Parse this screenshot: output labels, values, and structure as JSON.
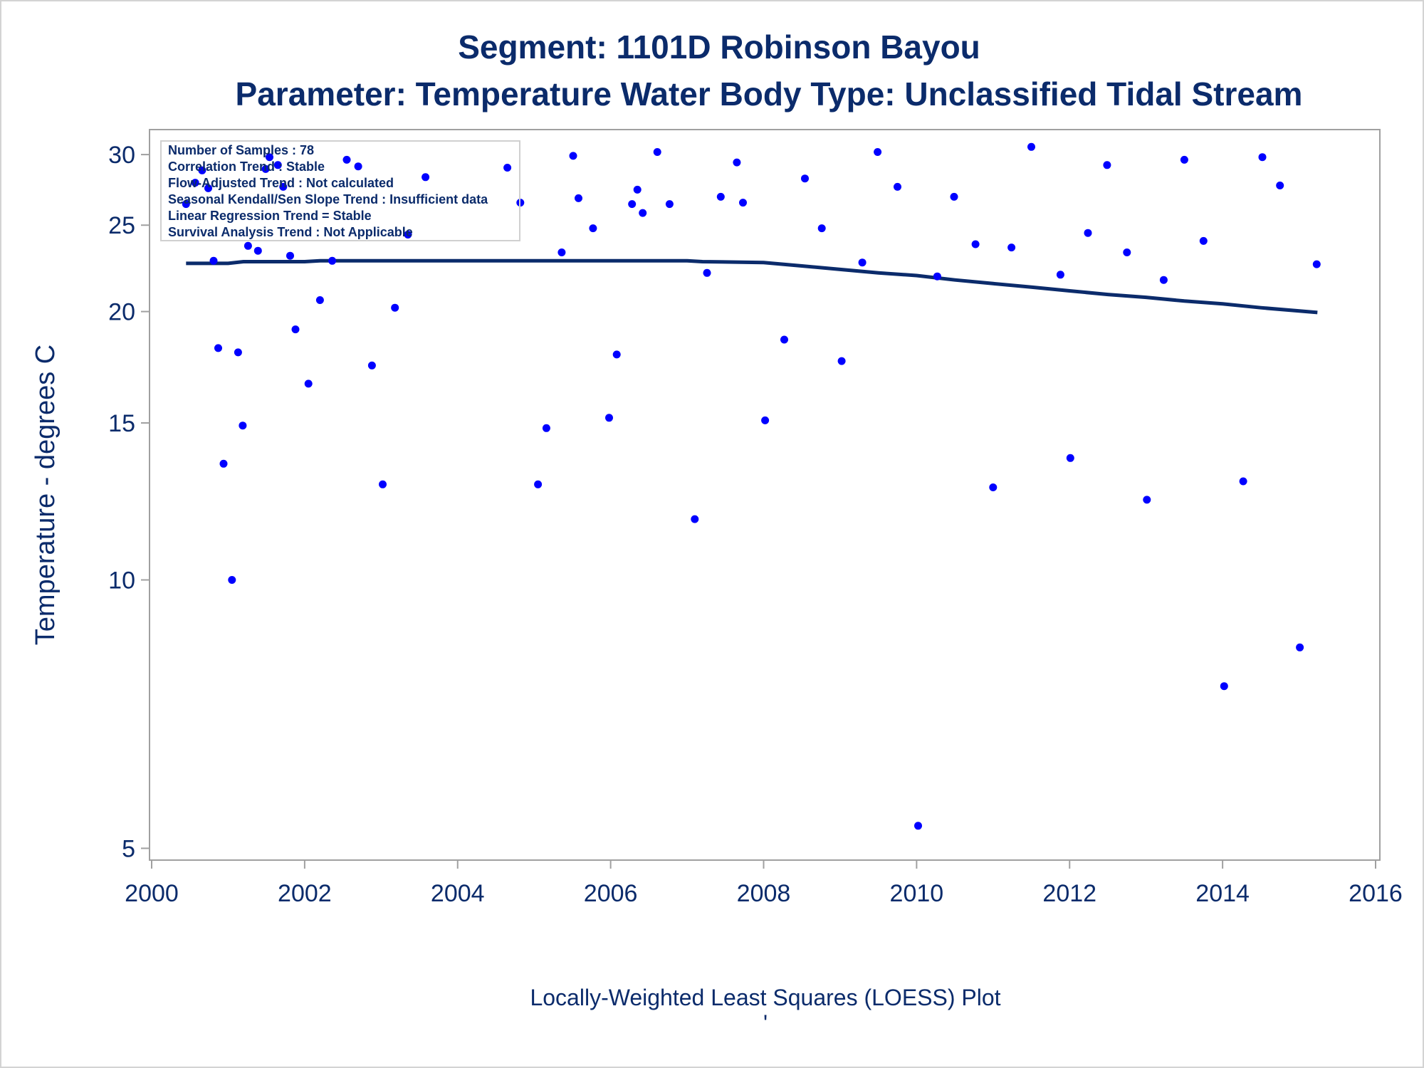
{
  "chart_data": {
    "type": "scatter",
    "title": "Segment: 1101D  Robinson Bayou",
    "subtitle": "Parameter: Temperature   Water Body Type: Unclassified Tidal Stream",
    "xlabel": "",
    "ylabel": "Temperature - degrees C",
    "footnote": "Locally-Weighted Least Squares (LOESS) Plot",
    "footnote2": "'",
    "y_scale": "log",
    "xlim": [
      2000,
      2016
    ],
    "ylim": [
      4.85,
      32
    ],
    "x_ticks": [
      2000,
      2002,
      2004,
      2006,
      2008,
      2010,
      2012,
      2014,
      2016
    ],
    "y_ticks": [
      5,
      10,
      15,
      20,
      25,
      30
    ],
    "grid": false,
    "colors": {
      "points": "#0000ff",
      "loess": "#0b2b6b",
      "text": "#0b2b6b",
      "axis": "#a0a0a0"
    },
    "stats_box": [
      "Number of Samples : 78",
      "Correlation Trend : Stable",
      "Flow-Adjusted Trend : Not calculated",
      "Seasonal Kendall/Sen Slope Trend : Insufficient data",
      "Linear Regression Trend = Stable",
      "Survival Analysis Trend : Not Applicable"
    ],
    "series": [
      {
        "type": "scatter",
        "points": [
          [
            2000.45,
            26.4
          ],
          [
            2000.57,
            27.9
          ],
          [
            2000.66,
            28.8
          ],
          [
            2000.74,
            27.5
          ],
          [
            2000.81,
            22.8
          ],
          [
            2000.87,
            18.2
          ],
          [
            2000.94,
            13.5
          ],
          [
            2001.05,
            10.0
          ],
          [
            2001.13,
            18.0
          ],
          [
            2001.19,
            14.9
          ],
          [
            2001.26,
            23.7
          ],
          [
            2001.39,
            23.4
          ],
          [
            2001.49,
            28.9
          ],
          [
            2001.54,
            29.8
          ],
          [
            2001.65,
            29.2
          ],
          [
            2001.72,
            27.6
          ],
          [
            2001.81,
            23.1
          ],
          [
            2001.88,
            19.1
          ],
          [
            2002.05,
            16.6
          ],
          [
            2002.2,
            20.6
          ],
          [
            2002.36,
            22.8
          ],
          [
            2002.55,
            29.6
          ],
          [
            2002.7,
            29.1
          ],
          [
            2002.88,
            17.4
          ],
          [
            2003.02,
            12.8
          ],
          [
            2003.18,
            20.2
          ],
          [
            2003.35,
            24.4
          ],
          [
            2003.58,
            28.3
          ],
          [
            2004.65,
            29.0
          ],
          [
            2004.82,
            26.5
          ],
          [
            2005.05,
            12.8
          ],
          [
            2005.16,
            14.8
          ],
          [
            2005.36,
            23.3
          ],
          [
            2005.51,
            29.9
          ],
          [
            2005.58,
            26.8
          ],
          [
            2005.77,
            24.8
          ],
          [
            2005.98,
            15.2
          ],
          [
            2006.08,
            17.9
          ],
          [
            2006.28,
            26.4
          ],
          [
            2006.35,
            27.4
          ],
          [
            2006.42,
            25.8
          ],
          [
            2006.61,
            30.2
          ],
          [
            2006.77,
            26.4
          ],
          [
            2007.1,
            11.7
          ],
          [
            2007.26,
            22.1
          ],
          [
            2007.44,
            26.9
          ],
          [
            2007.65,
            29.4
          ],
          [
            2007.73,
            26.5
          ],
          [
            2008.02,
            15.1
          ],
          [
            2008.27,
            18.6
          ],
          [
            2008.54,
            28.2
          ],
          [
            2008.76,
            24.8
          ],
          [
            2009.02,
            17.6
          ],
          [
            2009.29,
            22.7
          ],
          [
            2009.49,
            30.2
          ],
          [
            2009.75,
            27.6
          ],
          [
            2010.02,
            5.3
          ],
          [
            2010.27,
            21.9
          ],
          [
            2010.49,
            26.9
          ],
          [
            2010.77,
            23.8
          ],
          [
            2011.0,
            12.7
          ],
          [
            2011.24,
            23.6
          ],
          [
            2011.5,
            30.6
          ],
          [
            2011.88,
            22.0
          ],
          [
            2012.01,
            13.7
          ],
          [
            2012.24,
            24.5
          ],
          [
            2012.49,
            29.2
          ],
          [
            2012.75,
            23.3
          ],
          [
            2013.01,
            12.3
          ],
          [
            2013.23,
            21.7
          ],
          [
            2013.5,
            29.6
          ],
          [
            2013.75,
            24.0
          ],
          [
            2014.02,
            7.6
          ],
          [
            2014.27,
            12.9
          ],
          [
            2014.52,
            29.8
          ],
          [
            2014.75,
            27.7
          ],
          [
            2015.01,
            8.4
          ],
          [
            2015.23,
            22.6
          ]
        ]
      },
      {
        "type": "line",
        "points": [
          [
            2000.45,
            22.65
          ],
          [
            2001.0,
            22.65
          ],
          [
            2001.2,
            22.75
          ],
          [
            2002.0,
            22.75
          ],
          [
            2002.2,
            22.8
          ],
          [
            2007.0,
            22.8
          ],
          [
            2007.2,
            22.75
          ],
          [
            2008.0,
            22.7
          ],
          [
            2008.5,
            22.5
          ],
          [
            2009.0,
            22.3
          ],
          [
            2009.5,
            22.1
          ],
          [
            2010.0,
            21.95
          ],
          [
            2010.5,
            21.7
          ],
          [
            2011.0,
            21.5
          ],
          [
            2011.5,
            21.3
          ],
          [
            2012.0,
            21.1
          ],
          [
            2012.5,
            20.9
          ],
          [
            2013.0,
            20.75
          ],
          [
            2013.5,
            20.55
          ],
          [
            2014.0,
            20.4
          ],
          [
            2014.5,
            20.2
          ],
          [
            2015.24,
            19.95
          ]
        ]
      }
    ]
  }
}
